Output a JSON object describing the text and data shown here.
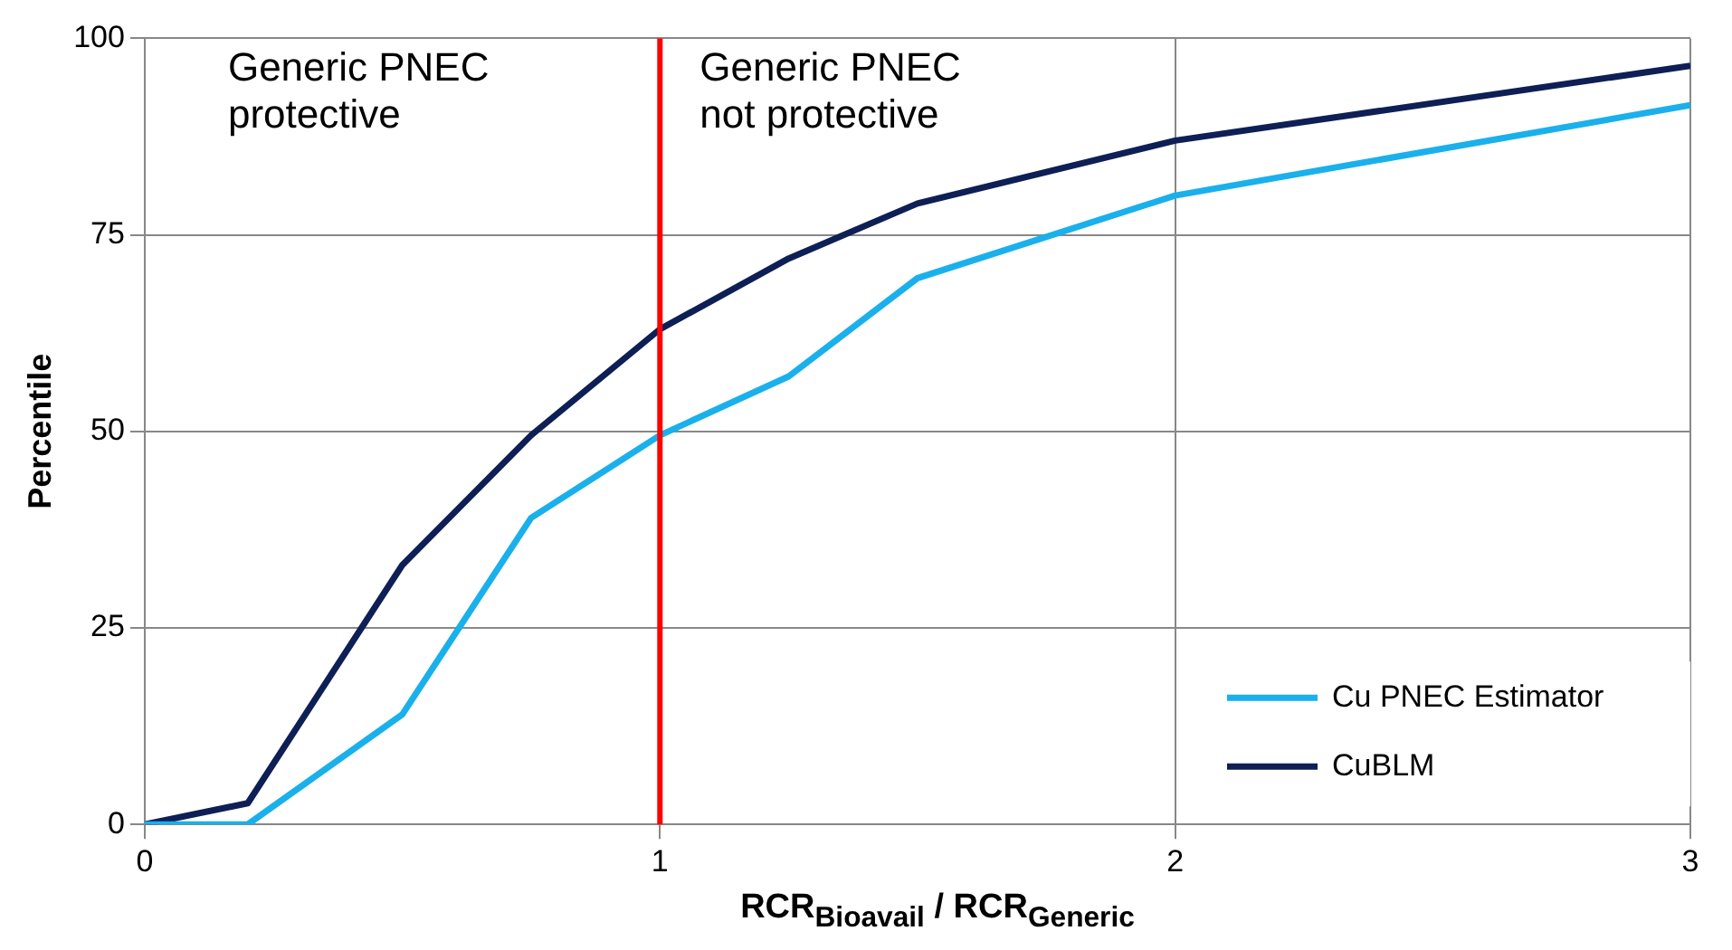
{
  "chart_data": {
    "type": "line",
    "xlabel": "RCR$_{Bioavail}$ / RCR$_{Generic}$",
    "ylabel": "Percentile",
    "x": [
      0,
      0.2,
      0.5,
      0.75,
      1,
      1.25,
      1.5,
      2,
      3
    ],
    "series": [
      {
        "name": "Cu PNEC Estimator",
        "color": "#1ab0ec",
        "values": [
          0,
          0,
          14,
          39,
          49.5,
          57,
          69.5,
          80,
          91.5
        ]
      },
      {
        "name": "CuBLM",
        "color": "#0e1f56",
        "values": [
          0,
          2.7,
          33,
          49.5,
          63,
          72,
          79,
          87,
          96.5
        ]
      }
    ],
    "xlim": [
      0,
      3
    ],
    "xticks": [
      0,
      1,
      2,
      3
    ],
    "ylim": [
      0,
      100
    ],
    "yticks": [
      0,
      25,
      50,
      75,
      100
    ],
    "grid": true,
    "legend": "bottom right",
    "marker": "none",
    "line_style": "solid",
    "ref_lines": [
      {
        "axis": "x",
        "value": 1,
        "color": "#ff0000"
      }
    ],
    "annotations": [
      "Generic PNEC\nprotective",
      "Generic PNEC\nnot protective"
    ]
  }
}
